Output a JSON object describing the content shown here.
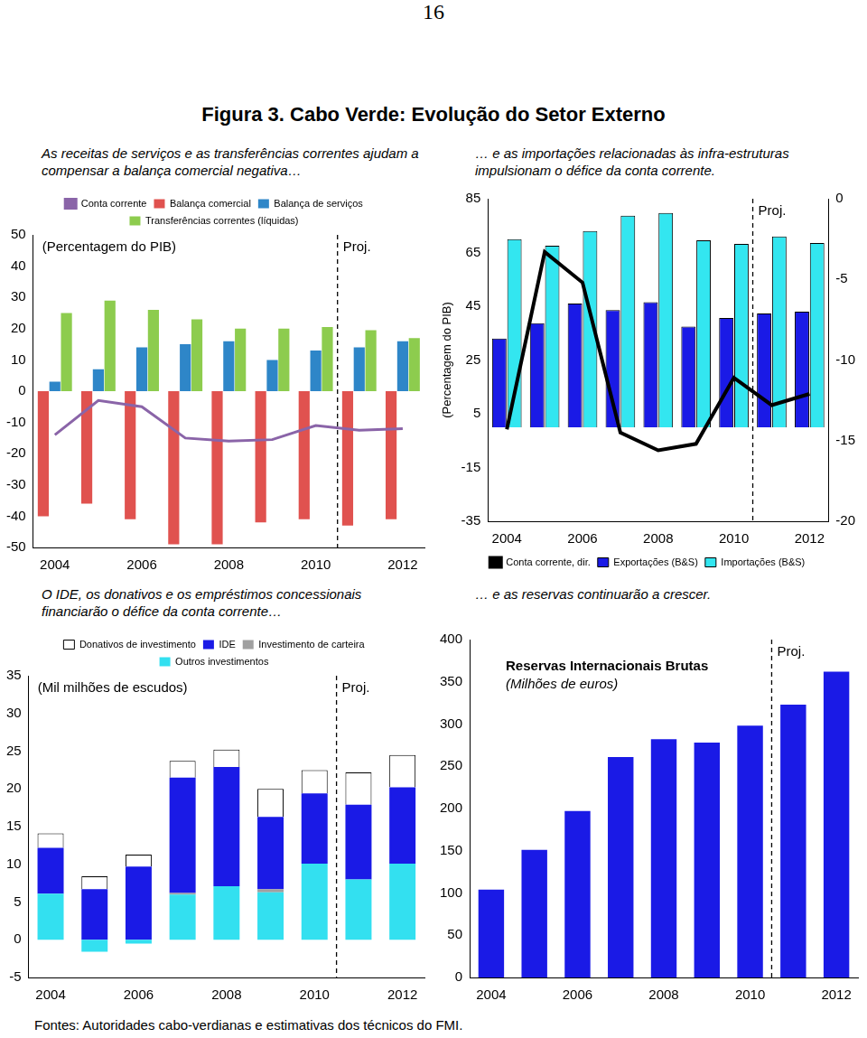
{
  "page": {
    "number": "16",
    "title": "Figura 3. Cabo Verde: Evolução do Setor Externo",
    "source": "Fontes: Autoridades cabo-verdianas e estimativas dos técnicos do FMI."
  },
  "chart_data": [
    {
      "type": "bar",
      "title": "As receitas de serviços e as transferências correntes ajudam a compensar a balança comercial negativa…",
      "unit": "(Percentagem do PIB)",
      "categories": [
        "2004",
        null,
        "2006",
        null,
        "2008",
        null,
        "2010",
        null,
        "2012"
      ],
      "series": [
        {
          "name": "Balança comercial",
          "color": "#e0524f",
          "values": [
            -40,
            -36,
            -41,
            -49,
            -49,
            -42,
            -41,
            -43,
            -41
          ]
        },
        {
          "name": "Balança de serviços",
          "color": "#2e86c8",
          "values": [
            3,
            7,
            14,
            15,
            16,
            10,
            13,
            14,
            16
          ]
        },
        {
          "name": "Transferências correntes (líquidas)",
          "color": "#8dcc4e",
          "values": [
            25,
            29,
            26,
            23,
            20,
            20,
            20.5,
            19.5,
            17
          ]
        },
        {
          "name": "Conta corrente",
          "color": "#8a64a8",
          "type": "line",
          "values": [
            -14,
            -3,
            -5,
            -15,
            -16,
            -15.5,
            -11,
            -12.5,
            -12
          ]
        }
      ],
      "ylim": [
        -50,
        50
      ],
      "yticks": [
        -50,
        -40,
        -30,
        -20,
        -10,
        0,
        10,
        20,
        30,
        40,
        50
      ],
      "grid": false,
      "legend": "top",
      "projection": {
        "label": "Proj.",
        "start_index": 7
      }
    },
    {
      "type": "bar",
      "title": "… e as importações relacionadas às infra-estruturas impulsionam o défice da conta corrente.",
      "unit": "(Percentagem do PIB)",
      "categories": [
        "2004",
        null,
        "2006",
        null,
        "2008",
        null,
        "2010",
        null,
        "2012"
      ],
      "series": [
        {
          "name": "Exportações (B&S)",
          "color": "#1a1ae6",
          "values": [
            33,
            38.7,
            46,
            43.6,
            46.5,
            37.4,
            40.6,
            42.3,
            43
          ]
        },
        {
          "name": "Importações (B&S)",
          "color": "#33e6f0",
          "values": [
            70,
            67.5,
            73,
            78.7,
            79.7,
            69.5,
            68.2,
            71,
            68.5
          ]
        },
        {
          "name": "Conta corrente, dir.",
          "color": "#000000",
          "type": "line",
          "axis": "y2",
          "values": [
            -14.3,
            -3.3,
            -5.2,
            -14.5,
            -15.6,
            -15.2,
            -11.1,
            -12.8,
            -12.1
          ]
        }
      ],
      "ylim": [
        -35,
        85
      ],
      "yticks": [
        -35,
        -15,
        5,
        25,
        45,
        65,
        85
      ],
      "y2lim": [
        -20,
        0
      ],
      "y2ticks": [
        -20,
        -15,
        -10,
        -5,
        0
      ],
      "grid": false,
      "legend": "bottom",
      "projection": {
        "label": "Proj.",
        "start_index": 7
      }
    },
    {
      "type": "bar",
      "title": "O IDE, os donativos e os empréstimos concessionais financiarão o déﬁce da conta corrente…",
      "unit": "(Mil milhões de escudos)",
      "categories": [
        "2004",
        null,
        "2006",
        null,
        "2008",
        null,
        "2010",
        null,
        "2012"
      ],
      "series": [
        {
          "name": "Outros investimentos",
          "color": "#33e0f0",
          "values": [
            6.1,
            -1.6,
            -0.5,
            6.0,
            7.1,
            6.3,
            10.1,
            8.0,
            10.1
          ]
        },
        {
          "name": "Investimento de carteira",
          "color": "#a0a0a0",
          "values": [
            0,
            0,
            0,
            0.2,
            0,
            0.4,
            0,
            0,
            0
          ]
        },
        {
          "name": "IDE",
          "color": "#1a1ae6",
          "values": [
            6.1,
            6.7,
            9.7,
            15.3,
            15.8,
            9.6,
            9.3,
            9.9,
            10.1
          ]
        },
        {
          "name": "Donativos de investimento",
          "color": "#ffffff",
          "values": [
            1.9,
            1.7,
            1.6,
            2.2,
            2.3,
            3.7,
            3.1,
            4.3,
            4.3
          ]
        }
      ],
      "stacked": true,
      "ylim": [
        -5,
        35
      ],
      "yticks": [
        -5,
        0,
        5,
        10,
        15,
        20,
        25,
        30,
        35
      ],
      "grid": false,
      "legend": "top",
      "projection": {
        "label": "Proj.",
        "start_index": 7
      }
    },
    {
      "type": "bar",
      "title": "… e as reservas continuarão a crescer.",
      "subtitle": "Reservas Internacionais Brutas",
      "unit": "(Milhões de euros)",
      "categories": [
        "2004",
        null,
        "2006",
        null,
        "2008",
        null,
        "2010",
        null,
        "2012"
      ],
      "values": [
        104,
        151,
        197,
        261,
        282,
        278,
        298,
        323,
        362
      ],
      "color": "#1a1ae6",
      "ylim": [
        0,
        400
      ],
      "yticks": [
        0,
        50,
        100,
        150,
        200,
        250,
        300,
        350,
        400
      ],
      "grid": false,
      "projection": {
        "label": "Proj.",
        "start_index": 7
      }
    }
  ]
}
